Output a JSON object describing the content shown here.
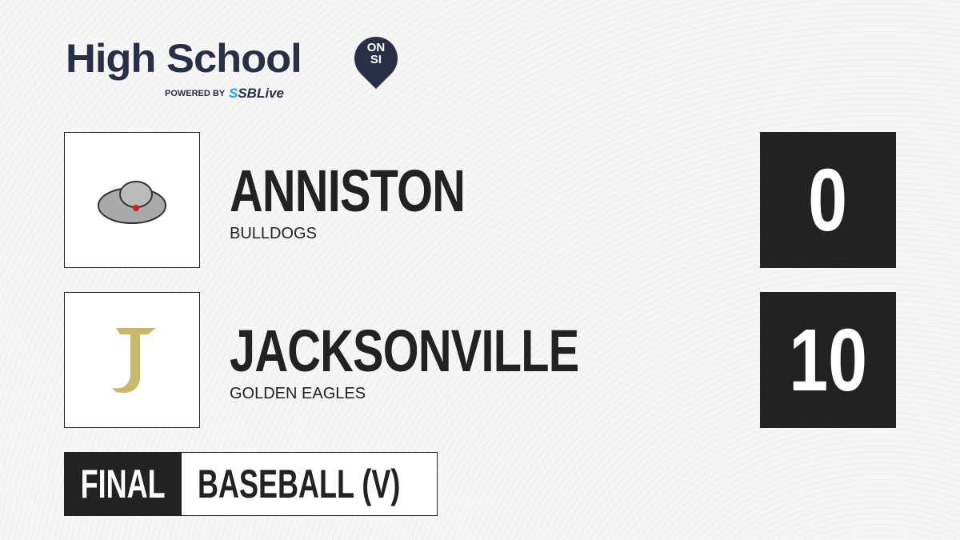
{
  "brand": {
    "title": "High School",
    "badge_top": "ON",
    "badge_bottom": "SI",
    "powered": "POWERED BY",
    "partner_a": "S",
    "partner_b": "SBLive"
  },
  "teams": [
    {
      "name": "ANNISTON",
      "mascot": "BULLDOGS",
      "score": "0",
      "logo": "bulldog-logo"
    },
    {
      "name": "JACKSONVILLE",
      "mascot": "GOLDEN EAGLES",
      "score": "10",
      "logo": "gothic-j-logo"
    }
  ],
  "status": "FINAL",
  "sport": "BASEBALL (V)",
  "colors": {
    "dark": "#222222",
    "brand": "#2b2f45",
    "accent": "#1aa7e6",
    "gold": "#c9b86a"
  }
}
